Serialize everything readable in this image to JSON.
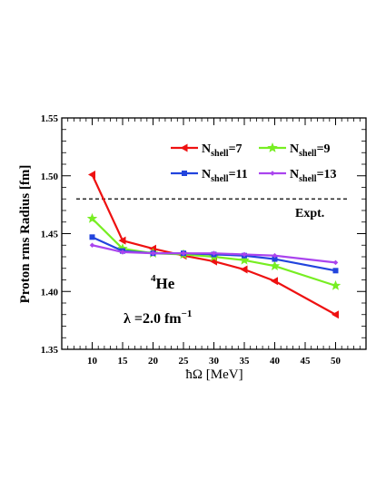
{
  "chart_data": {
    "type": "line",
    "xlabel": "ħΩ [MeV]",
    "ylabel": "Proton rms Radius [fm]",
    "xlim": [
      5,
      55
    ],
    "ylim": [
      1.35,
      1.55
    ],
    "xticks": [
      10,
      15,
      20,
      25,
      30,
      35,
      40,
      45,
      50
    ],
    "xtick_labels": [
      "10",
      "15",
      "20",
      "25",
      "30",
      "35",
      "40",
      "45",
      "50"
    ],
    "yticks": [
      1.35,
      1.4,
      1.45,
      1.5,
      1.55
    ],
    "ytick_labels": [
      "1.35",
      "1.40",
      "1.45",
      "1.50",
      "1.55"
    ],
    "grid": false,
    "legend_placement": "top-right",
    "series": [
      {
        "id": "n7",
        "name_main": "N",
        "name_sub": "shell",
        "name_tail": "=7",
        "color": "#ee1111",
        "marker": "triangle-left",
        "x": [
          10,
          15,
          20,
          25,
          30,
          35,
          40,
          50
        ],
        "y": [
          1.501,
          1.444,
          1.437,
          1.431,
          1.426,
          1.419,
          1.409,
          1.38
        ]
      },
      {
        "id": "n9",
        "name_main": "N",
        "name_sub": "shell",
        "name_tail": "=9",
        "color": "#77ee22",
        "marker": "star",
        "x": [
          10,
          15,
          20,
          25,
          30,
          35,
          40,
          50
        ],
        "y": [
          1.463,
          1.437,
          1.433,
          1.432,
          1.43,
          1.427,
          1.422,
          1.405
        ]
      },
      {
        "id": "n11",
        "name_main": "N",
        "name_sub": "shell",
        "name_tail": "=11",
        "color": "#2244dd",
        "marker": "square",
        "x": [
          10,
          15,
          20,
          25,
          30,
          35,
          40,
          50
        ],
        "y": [
          1.447,
          1.435,
          1.433,
          1.433,
          1.432,
          1.431,
          1.428,
          1.418
        ]
      },
      {
        "id": "n13",
        "name_main": "N",
        "name_sub": "shell",
        "name_tail": "=13",
        "color": "#aa44ee",
        "marker": "diamond",
        "x": [
          10,
          15,
          20,
          25,
          30,
          35,
          40,
          50
        ],
        "y": [
          1.44,
          1.434,
          1.433,
          1.433,
          1.433,
          1.432,
          1.431,
          1.425
        ]
      }
    ],
    "reference_line": {
      "label": "Expt.",
      "y": 1.48,
      "style": "dashed",
      "color": "#000000"
    },
    "annotations": {
      "nucleus_super": "4",
      "nucleus_main": "He",
      "lambda_main": "λ =2.0 fm",
      "lambda_sup": "−1"
    }
  }
}
